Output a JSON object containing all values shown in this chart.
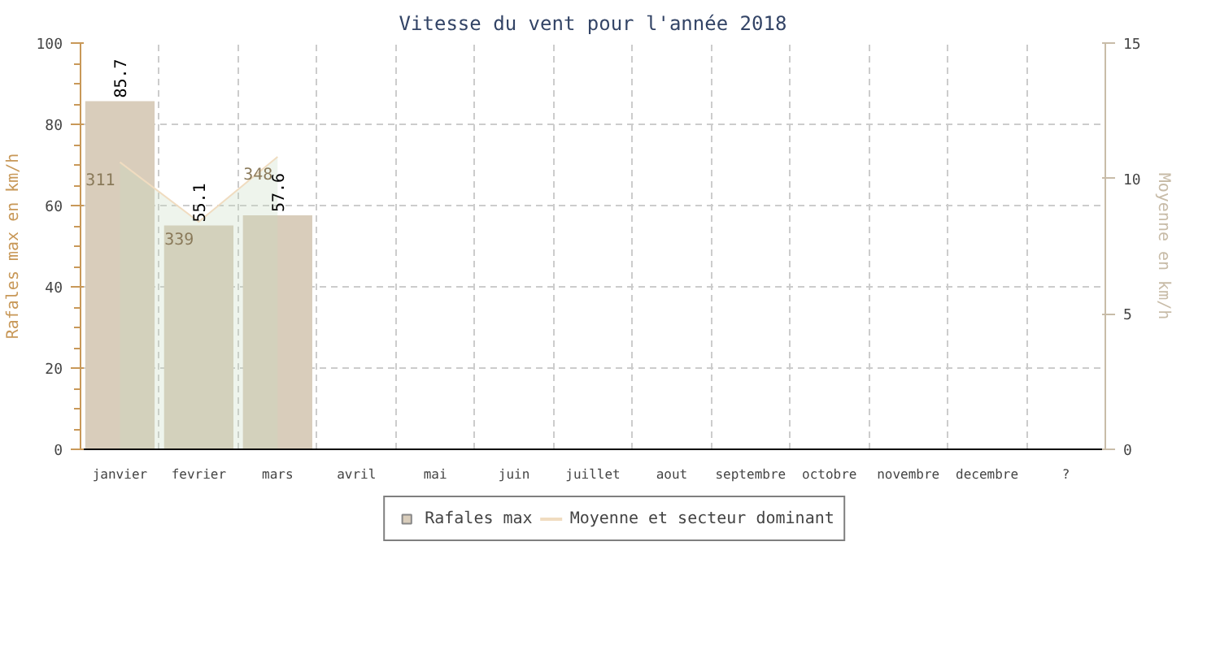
{
  "chart_data": {
    "type": "bar",
    "title": "Vitesse du vent pour l'année 2018",
    "ylabel": "Rafales max en km/h",
    "y2label": "Moyenne en km/h",
    "categories": [
      "janvier",
      "fevrier",
      "mars",
      "avril",
      "mai",
      "juin",
      "juillet",
      "aout",
      "septembre",
      "octobre",
      "novembre",
      "decembre",
      "?"
    ],
    "series": [
      {
        "name": "Rafales max",
        "color": "#d9cdbb",
        "values": [
          85.7,
          55.1,
          57.6,
          null,
          null,
          null,
          null,
          null,
          null,
          null,
          null,
          null,
          null
        ],
        "value_labels": [
          "85.7",
          "55.1",
          "57.6",
          null,
          null,
          null,
          null,
          null,
          null,
          null,
          null,
          null,
          null
        ]
      },
      {
        "name": "Moyenne et secteur dominant",
        "type": "area",
        "axis": "y2",
        "color": "#f0dcc0",
        "values": [
          10.6,
          8.4,
          10.8,
          null,
          null,
          null,
          null,
          null,
          null,
          null,
          null,
          null,
          null
        ]
      }
    ],
    "annotations": [
      "311",
      "339",
      "348"
    ],
    "ylim": [
      0,
      100
    ],
    "yticks": [
      0,
      20,
      40,
      60,
      80,
      100
    ],
    "y2lim": [
      0,
      15
    ],
    "y2ticks": [
      0,
      5,
      10,
      15
    ],
    "grid": true,
    "legend": "bottom"
  }
}
